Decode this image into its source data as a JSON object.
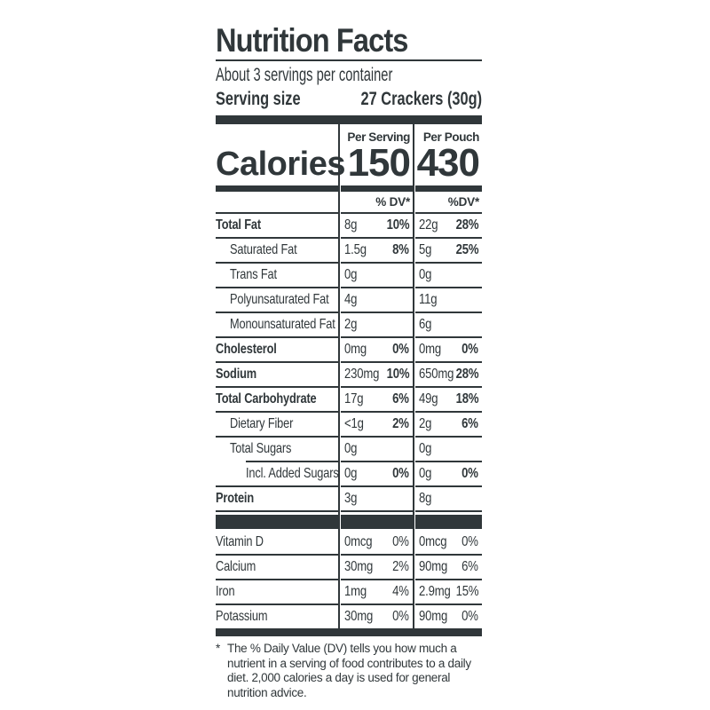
{
  "header": {
    "title": "Nutrition Facts",
    "servings_per_container": "About 3 servings per container",
    "serving_size_label": "Serving size",
    "serving_size_value": "27 Crackers (30g)"
  },
  "calories": {
    "label": "Calories",
    "columns": [
      {
        "label": "Per Serving",
        "value": "150"
      },
      {
        "label": "Per Pouch",
        "value": "430"
      }
    ]
  },
  "dv_header": {
    "per_serving": "% DV*",
    "per_pouch": "%DV*"
  },
  "nutrients": [
    {
      "name": "Total Fat",
      "bold": true,
      "indent": 0,
      "per_serving": {
        "amount": "8g",
        "dv": "10%"
      },
      "per_pouch": {
        "amount": "22g",
        "dv": "28%"
      }
    },
    {
      "name": "Saturated Fat",
      "bold": false,
      "indent": 1,
      "per_serving": {
        "amount": "1.5g",
        "dv": "8%"
      },
      "per_pouch": {
        "amount": "5g",
        "dv": "25%"
      }
    },
    {
      "name": "Trans Fat",
      "bold": false,
      "indent": 1,
      "per_serving": {
        "amount": "0g",
        "dv": ""
      },
      "per_pouch": {
        "amount": "0g",
        "dv": ""
      }
    },
    {
      "name": "Polyunsaturated Fat",
      "bold": false,
      "indent": 1,
      "per_serving": {
        "amount": "4g",
        "dv": ""
      },
      "per_pouch": {
        "amount": "11g",
        "dv": ""
      }
    },
    {
      "name": "Monounsaturated Fat",
      "bold": false,
      "indent": 1,
      "per_serving": {
        "amount": "2g",
        "dv": ""
      },
      "per_pouch": {
        "amount": "6g",
        "dv": ""
      }
    },
    {
      "name": "Cholesterol",
      "bold": true,
      "indent": 0,
      "per_serving": {
        "amount": "0mg",
        "dv": "0%"
      },
      "per_pouch": {
        "amount": "0mg",
        "dv": "0%"
      }
    },
    {
      "name": "Sodium",
      "bold": true,
      "indent": 0,
      "per_serving": {
        "amount": "230mg",
        "dv": "10%"
      },
      "per_pouch": {
        "amount": "650mg",
        "dv": "28%"
      }
    },
    {
      "name": "Total Carbohydrate",
      "bold": true,
      "indent": 0,
      "per_serving": {
        "amount": "17g",
        "dv": "6%"
      },
      "per_pouch": {
        "amount": "49g",
        "dv": "18%"
      }
    },
    {
      "name": "Dietary Fiber",
      "bold": false,
      "indent": 1,
      "per_serving": {
        "amount": "<1g",
        "dv": "2%"
      },
      "per_pouch": {
        "amount": "2g",
        "dv": "6%"
      }
    },
    {
      "name": "Total Sugars",
      "bold": false,
      "indent": 1,
      "per_serving": {
        "amount": "0g",
        "dv": ""
      },
      "per_pouch": {
        "amount": "0g",
        "dv": ""
      }
    },
    {
      "name": "Incl. Added Sugars",
      "bold": false,
      "indent": 2,
      "per_serving": {
        "amount": "0g",
        "dv": "0%"
      },
      "per_pouch": {
        "amount": "0g",
        "dv": "0%"
      }
    },
    {
      "name": "Protein",
      "bold": true,
      "indent": 0,
      "per_serving": {
        "amount": "3g",
        "dv": ""
      },
      "per_pouch": {
        "amount": "8g",
        "dv": ""
      }
    }
  ],
  "vitamins": [
    {
      "name": "Vitamin D",
      "bold": false,
      "indent": 0,
      "per_serving": {
        "amount": "0mcg",
        "dv": "0%"
      },
      "per_pouch": {
        "amount": "0mcg",
        "dv": "0%"
      }
    },
    {
      "name": "Calcium",
      "bold": false,
      "indent": 0,
      "per_serving": {
        "amount": "30mg",
        "dv": "2%"
      },
      "per_pouch": {
        "amount": "90mg",
        "dv": "6%"
      }
    },
    {
      "name": "Iron",
      "bold": false,
      "indent": 0,
      "per_serving": {
        "amount": "1mg",
        "dv": "4%"
      },
      "per_pouch": {
        "amount": "2.9mg",
        "dv": "15%"
      }
    },
    {
      "name": "Potassium",
      "bold": false,
      "indent": 0,
      "per_serving": {
        "amount": "30mg",
        "dv": "0%"
      },
      "per_pouch": {
        "amount": "90mg",
        "dv": "0%"
      }
    }
  ],
  "footnote": {
    "marker": "*",
    "text": "The % Daily Value (DV) tells you how much a nutrient in a serving of food contributes to a daily diet. 2,000 calories a day is used for general nutrition advice."
  },
  "colors": {
    "ink": "#30373a",
    "background": "#ffffff"
  }
}
